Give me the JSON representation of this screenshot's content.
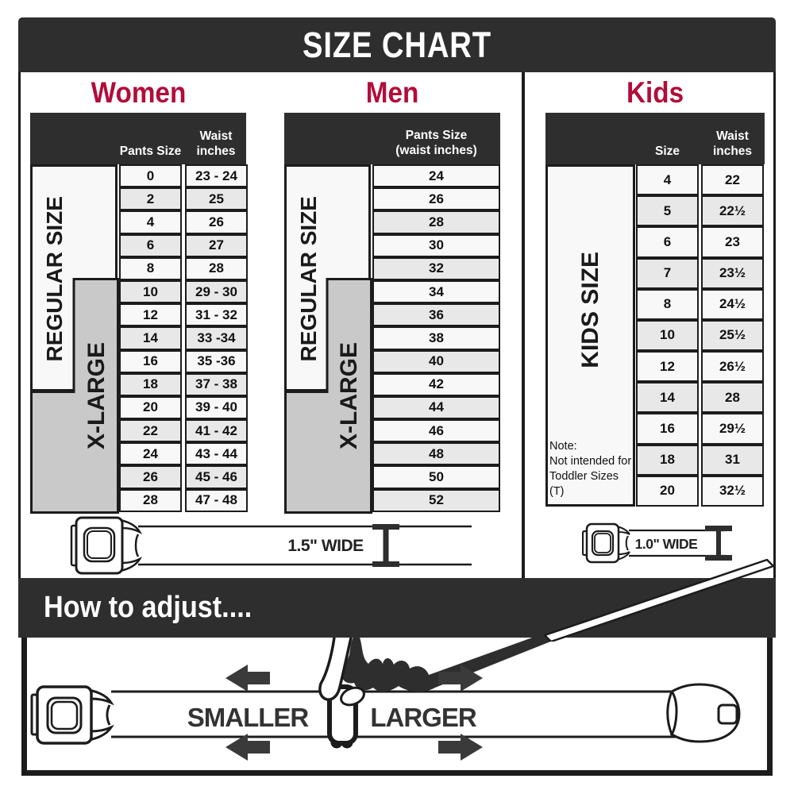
{
  "title": "SIZE CHART",
  "colors": {
    "band_dark": "#2e2e2e",
    "accent_red": "#b20d3a",
    "row_light": "#f8f8f8",
    "row_shaded": "#e8e8e8",
    "xlarge_gray": "#c9c9c9",
    "border_black": "#1c1c1c"
  },
  "women": {
    "heading": "Women",
    "size_header": "Pants Size",
    "waist_header_line1": "Waist",
    "waist_header_line2": "inches",
    "regular_label": "REGULAR SIZE",
    "xlarge_label": "X-LARGE",
    "rows": [
      {
        "size": "0",
        "waist": "23 - 24"
      },
      {
        "size": "2",
        "waist": "25"
      },
      {
        "size": "4",
        "waist": "26"
      },
      {
        "size": "6",
        "waist": "27"
      },
      {
        "size": "8",
        "waist": "28"
      },
      {
        "size": "10",
        "waist": "29 - 30"
      },
      {
        "size": "12",
        "waist": "31 - 32"
      },
      {
        "size": "14",
        "waist": "33 -34"
      },
      {
        "size": "16",
        "waist": "35 -36"
      },
      {
        "size": "18",
        "waist": "37 - 38"
      },
      {
        "size": "20",
        "waist": "39 - 40"
      },
      {
        "size": "22",
        "waist": "41 - 42"
      },
      {
        "size": "24",
        "waist": "43 - 44"
      },
      {
        "size": "26",
        "waist": "45 - 46"
      },
      {
        "size": "28",
        "waist": "47 - 48"
      }
    ]
  },
  "men": {
    "heading": "Men",
    "header_line1": "Pants Size",
    "header_line2": "(waist inches)",
    "regular_label": "REGULAR SIZE",
    "xlarge_label": "X-LARGE",
    "rows": [
      "24",
      "26",
      "28",
      "30",
      "32",
      "34",
      "36",
      "38",
      "40",
      "42",
      "44",
      "46",
      "48",
      "50",
      "52"
    ]
  },
  "kids": {
    "heading": "Kids",
    "size_header": "Size",
    "waist_header_line1": "Waist",
    "waist_header_line2": "inches",
    "label": "KIDS SIZE",
    "note_line1": "Note:",
    "note_line2": "Not intended for",
    "note_line3": "Toddler Sizes (T)",
    "rows": [
      {
        "size": "4",
        "waist": "22"
      },
      {
        "size": "5",
        "waist": "22½"
      },
      {
        "size": "6",
        "waist": "23"
      },
      {
        "size": "7",
        "waist": "23½"
      },
      {
        "size": "8",
        "waist": "24½"
      },
      {
        "size": "10",
        "waist": "25½"
      },
      {
        "size": "12",
        "waist": "26½"
      },
      {
        "size": "14",
        "waist": "28"
      },
      {
        "size": "16",
        "waist": "29½"
      },
      {
        "size": "18",
        "waist": "31"
      },
      {
        "size": "20",
        "waist": "32½"
      }
    ]
  },
  "belts": {
    "adult_width": "1.5\" WIDE",
    "kids_width": "1.0\" WIDE"
  },
  "adjust": {
    "heading": "How to adjust....",
    "smaller": "SMALLER",
    "larger": "LARGER"
  }
}
